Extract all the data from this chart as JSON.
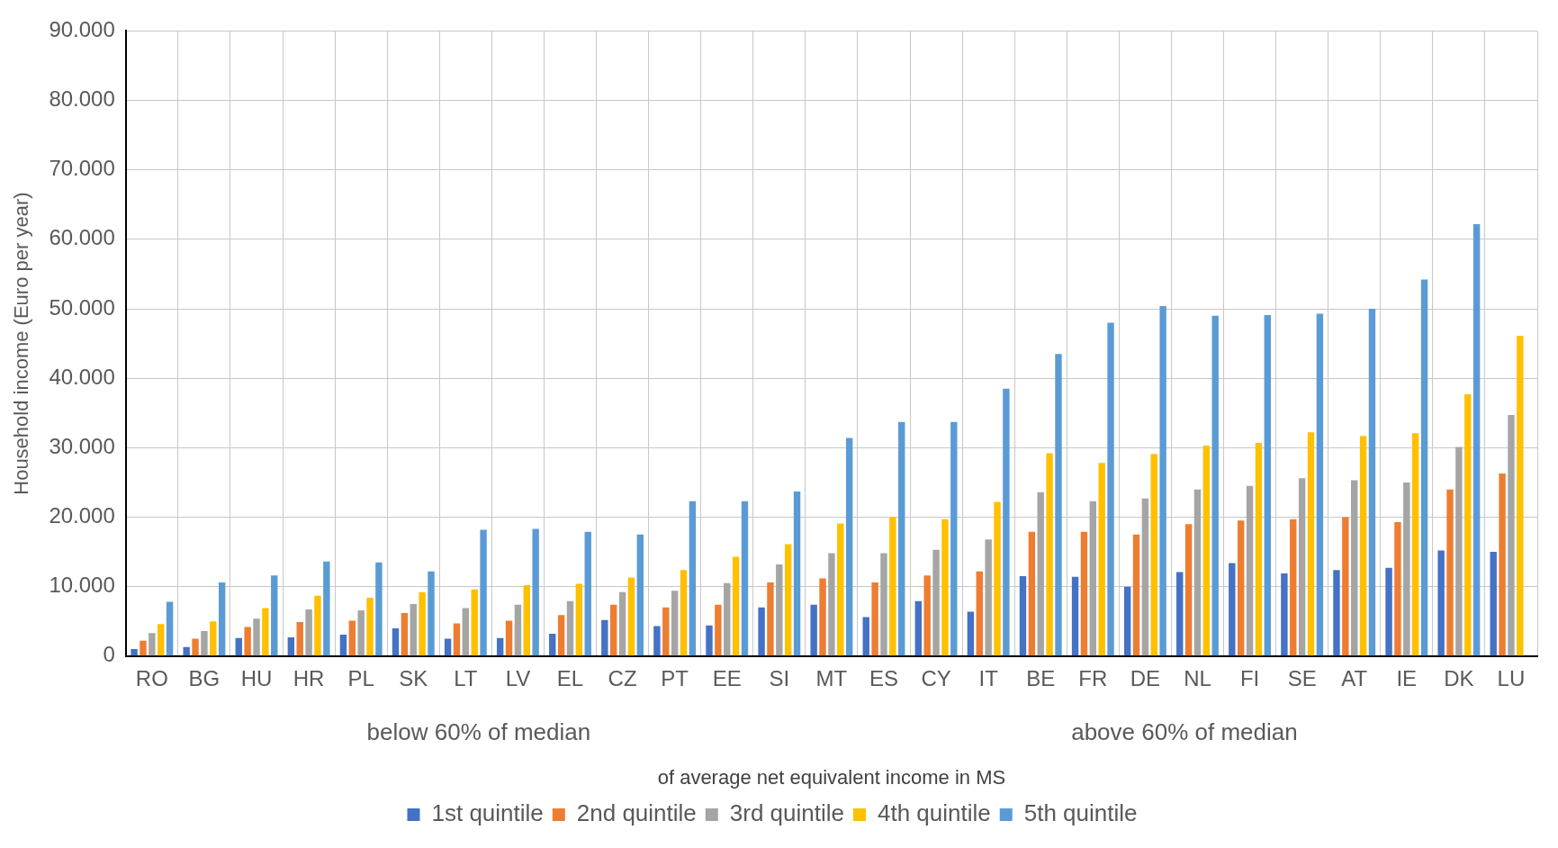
{
  "chart_data": {
    "type": "bar",
    "ylabel": "Household income (Euro per year)",
    "xlabel": "of average net equivalent income in MS",
    "categories": [
      "RO",
      "BG",
      "HU",
      "HR",
      "PL",
      "SK",
      "LT",
      "LV",
      "EL",
      "CZ",
      "PT",
      "EE",
      "SI",
      "MT",
      "ES",
      "CY",
      "IT",
      "BE",
      "FR",
      "DE",
      "NL",
      "FI",
      "SE",
      "AT",
      "IE",
      "DK",
      "LU"
    ],
    "series": [
      {
        "name": "1st quintile",
        "color": "#4472c4",
        "values": [
          1000,
          1300,
          2600,
          2700,
          3100,
          4000,
          2500,
          2600,
          3200,
          5200,
          4300,
          4400,
          7000,
          7400,
          5600,
          7900,
          6400,
          11500,
          11400,
          10000,
          12100,
          13400,
          11900,
          12400,
          12700,
          15200,
          15000
        ]
      },
      {
        "name": "2nd quintile",
        "color": "#ed7d31",
        "values": [
          2200,
          2500,
          4200,
          4900,
          5100,
          6200,
          4700,
          5100,
          5900,
          7400,
          7000,
          7400,
          10600,
          11200,
          10600,
          11600,
          12200,
          17900,
          17900,
          17500,
          19000,
          19500,
          19700,
          20000,
          19300,
          24000,
          26300
        ]
      },
      {
        "name": "3rd quintile",
        "color": "#a5a5a5",
        "values": [
          3300,
          3600,
          5400,
          6700,
          6600,
          7500,
          6900,
          7400,
          7900,
          9200,
          9400,
          10500,
          13200,
          14800,
          14800,
          15300,
          16800,
          23600,
          22300,
          22700,
          24000,
          24500,
          25600,
          25300,
          25000,
          30100,
          34700
        ]
      },
      {
        "name": "4th quintile",
        "color": "#ffc000",
        "values": [
          4600,
          5000,
          6900,
          8700,
          8400,
          9200,
          9600,
          10200,
          10400,
          11300,
          12400,
          14300,
          16100,
          19100,
          20000,
          19700,
          22200,
          29200,
          27800,
          29100,
          30300,
          30700,
          32200,
          31700,
          32100,
          37700,
          46100
        ]
      },
      {
        "name": "5th quintile",
        "color": "#5b9bd5",
        "values": [
          7800,
          10600,
          11600,
          13600,
          13500,
          12200,
          18200,
          18300,
          17900,
          17500,
          22300,
          22300,
          23700,
          31400,
          33700,
          33700,
          38500,
          43500,
          48000,
          50400,
          49000,
          49100,
          49300,
          50000,
          54200,
          62200,
          null
        ]
      }
    ],
    "ylim": [
      0,
      90000
    ],
    "yticks": [
      {
        "value": 0,
        "label": "0"
      },
      {
        "value": 10000,
        "label": "10.000"
      },
      {
        "value": 20000,
        "label": "20.000"
      },
      {
        "value": 30000,
        "label": "30.000"
      },
      {
        "value": 40000,
        "label": "40.000"
      },
      {
        "value": 50000,
        "label": "50.000"
      },
      {
        "value": 60000,
        "label": "60.000"
      },
      {
        "value": 70000,
        "label": "70.000"
      },
      {
        "value": 80000,
        "label": "80.000"
      },
      {
        "value": 90000,
        "label": "90.000"
      }
    ],
    "annotations": [
      "below 60% of median",
      "above 60% of median"
    ],
    "grid": true,
    "legend": "bottom"
  }
}
